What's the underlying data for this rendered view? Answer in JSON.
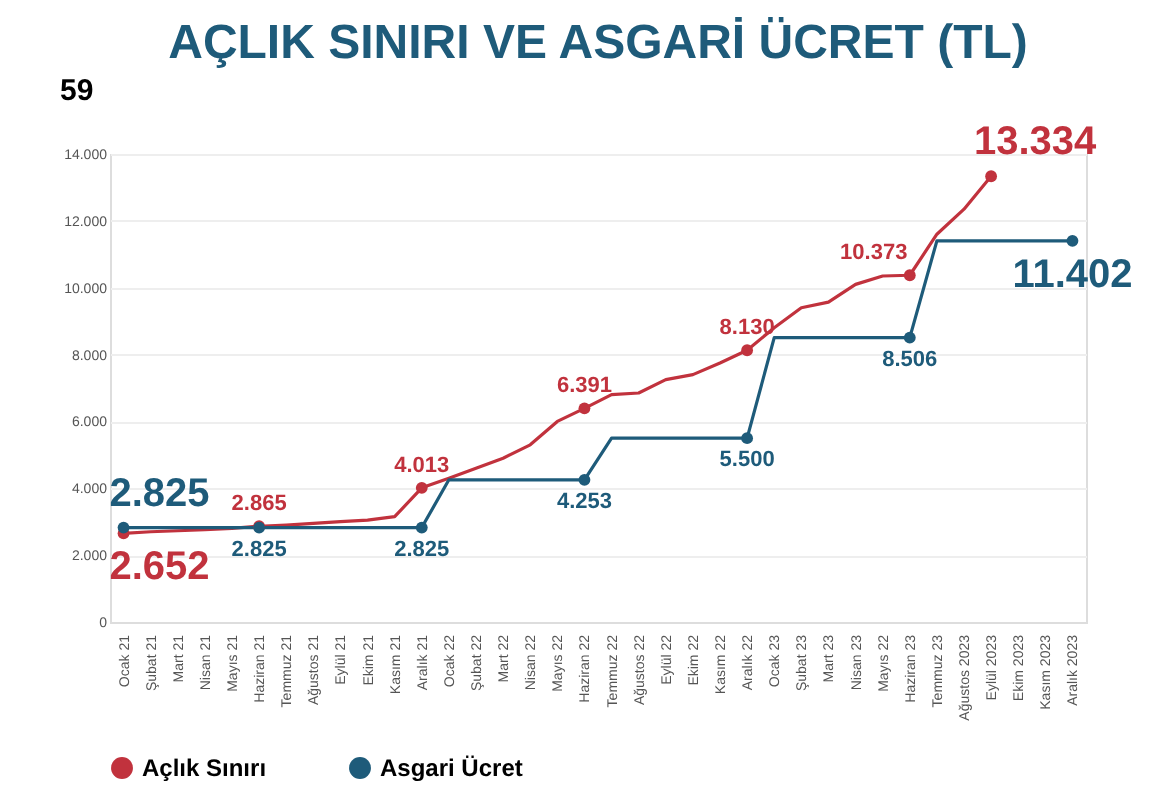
{
  "chart_data": {
    "type": "line",
    "title": "AÇLIK SINIRI VE ASGARİ ÜCRET (TL)",
    "annotations": [
      "59"
    ],
    "categories": [
      "Ocak 21",
      "Şubat 21",
      "Mart 21",
      "Nisan 21",
      "Mayıs 21",
      "Haziran 21",
      "Temmuz 21",
      "Ağustos 21",
      "Eylül 21",
      "Ekim 21",
      "Kasım 21",
      "Aralık 21",
      "Ocak 22",
      "Şubat 22",
      "Mart 22",
      "Nisan 22",
      "Mayıs 22",
      "Haziran 22",
      "Temmuz 22",
      "Ağustos 22",
      "Eylül 22",
      "Ekim 22",
      "Kasım 22",
      "Aralık 22",
      "Ocak 23",
      "Şubat 23",
      "Mart 23",
      "Nisan 23",
      "Mayıs 22",
      "Haziran 23",
      "Temmuz 23",
      "Ağustos 2023",
      "Eylül 2023",
      "Ekim 2023",
      "Kasım 2023",
      "Aralık 2023"
    ],
    "series": [
      {
        "name": "Açlık Sınırı",
        "color": "#c1323d",
        "values": [
          2652,
          2700,
          2730,
          2760,
          2800,
          2865,
          2900,
          2950,
          3000,
          3050,
          3150,
          4013,
          4300,
          4600,
          4900,
          5300,
          6000,
          6391,
          6800,
          6850,
          7250,
          7400,
          7750,
          8130,
          8800,
          9400,
          9570,
          10100,
          10350,
          10373,
          11600,
          12350,
          13334,
          null,
          null,
          null
        ],
        "value_labels": [
          "2.652",
          null,
          null,
          null,
          null,
          "2.865",
          null,
          null,
          null,
          null,
          null,
          "4.013",
          null,
          null,
          null,
          null,
          null,
          "6.391",
          null,
          null,
          null,
          null,
          null,
          "8.130",
          null,
          null,
          null,
          null,
          null,
          "10.373",
          null,
          null,
          "13.334",
          null,
          null,
          null
        ]
      },
      {
        "name": "Asgari Ücret",
        "color": "#1e5b7a",
        "values": [
          2825,
          2825,
          2825,
          2825,
          2825,
          2825,
          2825,
          2825,
          2825,
          2825,
          2825,
          2825,
          4253,
          4253,
          4253,
          4253,
          4253,
          4253,
          5500,
          5500,
          5500,
          5500,
          5500,
          5500,
          8506,
          8506,
          8506,
          8506,
          8506,
          8506,
          11402,
          11402,
          11402,
          11402,
          11402,
          11402
        ],
        "value_labels": [
          "2.825",
          null,
          null,
          null,
          null,
          "2.825",
          null,
          null,
          null,
          null,
          null,
          "2.825",
          null,
          null,
          null,
          null,
          null,
          "4.253",
          null,
          null,
          null,
          null,
          null,
          "5.500",
          null,
          null,
          null,
          null,
          null,
          "8.506",
          null,
          null,
          null,
          null,
          null,
          "11.402"
        ]
      }
    ],
    "ylim": [
      0,
      14000
    ],
    "yticks": [
      0,
      {
        "value": 2000,
        "label": "2.000"
      },
      {
        "value": 4000,
        "label": "4.000"
      },
      {
        "value": 6000,
        "label": "6.000"
      },
      {
        "value": 8000,
        "label": "8.000"
      },
      {
        "value": 10000,
        "label": "10.000"
      },
      {
        "value": 12000,
        "label": "12.000"
      },
      {
        "value": 14000,
        "label": "14.000"
      }
    ],
    "grid": "y",
    "legend": "bottom",
    "line_style": "solid"
  }
}
